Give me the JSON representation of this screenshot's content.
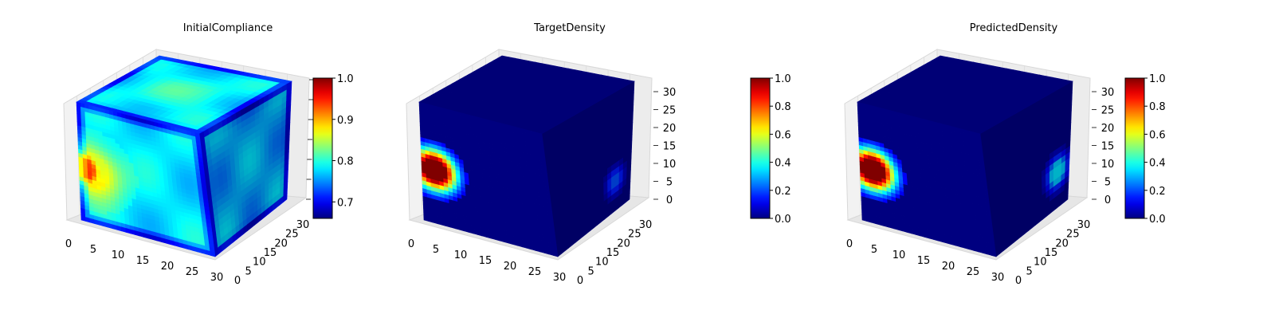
{
  "chart_data": [
    {
      "type": "heatmap",
      "subtype": "3d-voxel-cube",
      "title": "InitialCompliance",
      "xticks": [
        "0",
        "5",
        "10",
        "15",
        "20",
        "25",
        "30"
      ],
      "yticks": [
        "0",
        "5",
        "10",
        "15",
        "20",
        "25",
        "30"
      ],
      "zticks": [],
      "colorbar": {
        "min": 0.66,
        "max": 1.0,
        "ticks": [
          "0.7",
          "0.8",
          "0.9",
          "1.0"
        ],
        "colormap": "jet"
      },
      "description": "Voxel cube of normalized initial compliance; mostly 0.75-0.8, hot spot near 0.95 on the left of the front face, low values along edges.",
      "front_face": {
        "base": 0.78,
        "blobs": [
          {
            "u": 0.03,
            "v": 0.55,
            "r": 0.14,
            "value": 0.95
          },
          {
            "u": 0.1,
            "v": 0.55,
            "r": 0.22,
            "value": 0.88
          }
        ],
        "edge_value": 0.7
      }
    },
    {
      "type": "heatmap",
      "subtype": "3d-voxel-cube",
      "title": "TargetDensity",
      "xticks": [
        "0",
        "5",
        "10",
        "15",
        "20",
        "25",
        "30"
      ],
      "yticks": [
        "0",
        "5",
        "10",
        "15",
        "20",
        "25",
        "30"
      ],
      "zticks": [
        "0",
        "5",
        "10",
        "15",
        "20",
        "25",
        "30"
      ],
      "colorbar": {
        "min": 0.0,
        "max": 1.0,
        "ticks": [
          "0.0",
          "0.2",
          "0.4",
          "0.6",
          "0.8",
          "1.0"
        ],
        "colormap": "jet"
      },
      "description": "Target density: mostly 0 (void) with a solid region of density 1 on the left of the front face.",
      "front_face": {
        "base": 0.0,
        "blobs": [
          {
            "u": 0.1,
            "v": 0.55,
            "r": 0.16,
            "value": 1.0
          }
        ],
        "edge_value": 0.0
      },
      "side_face": {
        "blobs": [
          {
            "u": 0.8,
            "v": 0.75,
            "r": 0.1,
            "value": 0.2
          }
        ]
      }
    },
    {
      "type": "heatmap",
      "subtype": "3d-voxel-cube",
      "title": "PredictedDensity",
      "xticks": [
        "0",
        "5",
        "10",
        "15",
        "20",
        "25",
        "30"
      ],
      "yticks": [
        "0",
        "5",
        "10",
        "15",
        "20",
        "25",
        "30"
      ],
      "zticks": [
        "0",
        "5",
        "10",
        "15",
        "20",
        "25",
        "30"
      ],
      "colorbar": {
        "min": 0.0,
        "max": 1.0,
        "ticks": [
          "0.0",
          "0.2",
          "0.4",
          "0.6",
          "0.8",
          "1.0"
        ],
        "colormap": "jet"
      },
      "description": "Predicted density closely matching the target: solid region of density 1 on the left of the front face.",
      "front_face": {
        "base": 0.0,
        "blobs": [
          {
            "u": 0.1,
            "v": 0.55,
            "r": 0.16,
            "value": 1.0
          }
        ],
        "edge_value": 0.0
      },
      "side_face": {
        "blobs": [
          {
            "u": 0.85,
            "v": 0.7,
            "r": 0.12,
            "value": 0.35
          }
        ]
      }
    }
  ]
}
